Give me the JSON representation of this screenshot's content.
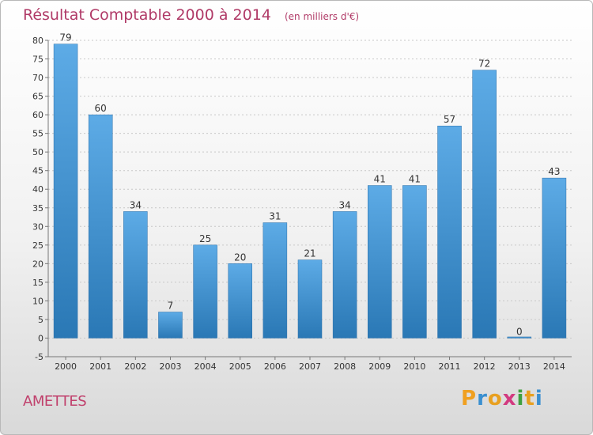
{
  "chart_data": {
    "type": "bar",
    "title": "Résultat Comptable 2000 à 2014",
    "subtitle": "(en milliers d'€)",
    "categories": [
      "2000",
      "2001",
      "2002",
      "2003",
      "2004",
      "2005",
      "2006",
      "2007",
      "2008",
      "2009",
      "2010",
      "2011",
      "2012",
      "2013",
      "2014"
    ],
    "values": [
      79,
      60,
      34,
      7,
      25,
      20,
      31,
      21,
      34,
      41,
      41,
      57,
      72,
      0,
      43
    ],
    "ylim": [
      -5,
      80
    ],
    "yticks": [
      -5,
      0,
      5,
      10,
      15,
      20,
      25,
      30,
      35,
      40,
      45,
      50,
      55,
      60,
      65,
      70,
      75,
      80
    ],
    "grid": true,
    "bar_color_top": "#5dabe6",
    "bar_color_bottom": "#2a78b5"
  },
  "footer": {
    "commune": "AMETTES",
    "logo_letters": [
      "P",
      "r",
      "o",
      "x",
      "i",
      "t",
      "i"
    ],
    "logo_colors": [
      "#f0a020",
      "#3a8fd0",
      "#e8a020",
      "#d23a80",
      "#3fa040",
      "#e8a020",
      "#3a8fd0"
    ]
  }
}
